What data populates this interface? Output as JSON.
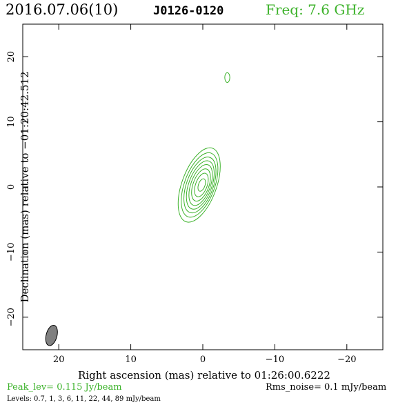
{
  "header": {
    "date": "2016.07.06(10)",
    "source": "J0126-0120",
    "frequency": "Freq: 7.6 GHz"
  },
  "chart_data": {
    "type": "contour",
    "xlabel": "Right ascension (mas) relative to 01:26:00.6222",
    "ylabel": "Declination (mas) relative to −01:20:42.512",
    "xlim": [
      25,
      -25
    ],
    "ylim": [
      -25,
      25
    ],
    "x_ticks": [
      20,
      10,
      0,
      -10,
      -20
    ],
    "x_tick_labels": [
      "20",
      "10",
      "0",
      "−10",
      "−20"
    ],
    "y_ticks": [
      20,
      10,
      0,
      -10,
      -20
    ],
    "y_tick_labels": [
      "20",
      "10",
      "0",
      "−10",
      "−20"
    ],
    "contour_color": "#3cb22a",
    "contours": [
      {
        "cx": 0.5,
        "cy": 0.3,
        "rx": 2.4,
        "ry": 6.0,
        "pa": 20
      },
      {
        "cx": 0.45,
        "cy": 0.3,
        "rx": 2.1,
        "ry": 5.2,
        "pa": 20
      },
      {
        "cx": 0.4,
        "cy": 0.3,
        "rx": 1.85,
        "ry": 4.5,
        "pa": 20
      },
      {
        "cx": 0.35,
        "cy": 0.3,
        "rx": 1.6,
        "ry": 3.9,
        "pa": 20
      },
      {
        "cx": 0.3,
        "cy": 0.3,
        "rx": 1.35,
        "ry": 3.3,
        "pa": 20
      },
      {
        "cx": 0.25,
        "cy": 0.3,
        "rx": 1.1,
        "ry": 2.6,
        "pa": 20
      },
      {
        "cx": 0.2,
        "cy": 0.3,
        "rx": 0.8,
        "ry": 1.9,
        "pa": 20
      },
      {
        "cx": 0.15,
        "cy": 0.3,
        "rx": 0.45,
        "ry": 1.0,
        "pa": 20
      }
    ],
    "secondary_contours": [
      {
        "cx": -3.4,
        "cy": 16.8,
        "rx": 0.35,
        "ry": 0.75,
        "pa": 0
      }
    ],
    "beam": {
      "cx": 21.0,
      "cy": -22.8,
      "rx": 0.75,
      "ry": 1.6,
      "pa": 15,
      "color": "#808080"
    },
    "peak_level": "Peak_lev=  0.115 Jy/beam",
    "rms_noise": "Rms_noise=  0.1 mJy/beam",
    "levels_text": "Levels: 0.7,   1,   3,   6,  11,  22,  44,  89 mJy/beam"
  }
}
